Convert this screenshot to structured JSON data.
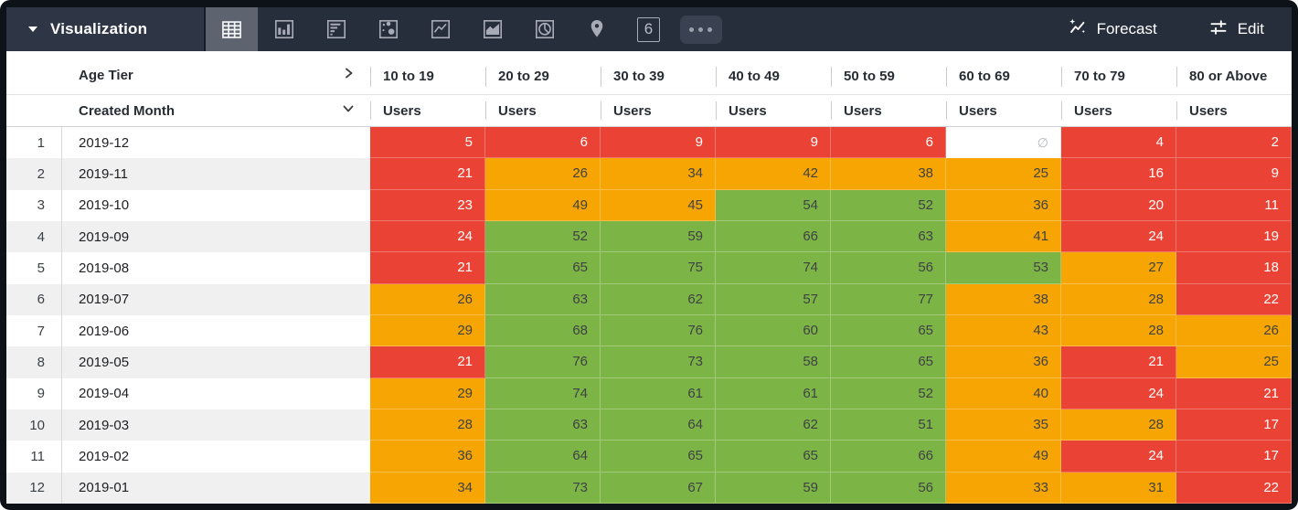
{
  "toolbar": {
    "viz_selector_label": "Visualization",
    "selected_tab": "table",
    "tab_names": [
      "table",
      "column-chart",
      "bar-chart",
      "scatter",
      "line-chart",
      "area-chart",
      "pie-chart",
      "map",
      "single-value",
      "more-options"
    ],
    "single_value_tab_label": "6",
    "forecast_label": "Forecast",
    "edit_label": "Edit"
  },
  "table": {
    "pivot_field_label": "Age Tier",
    "row_field_label": "Created Month",
    "measure_label": "Users",
    "pivot_columns": [
      "10 to 19",
      "20 to 29",
      "30 to 39",
      "40 to 49",
      "50 to 59",
      "60 to 69",
      "70 to 79",
      "80 or Above"
    ],
    "null_symbol": "∅",
    "rows": [
      {
        "num": "1",
        "month": "2019-12",
        "values": [
          5,
          6,
          9,
          9,
          6,
          null,
          4,
          2
        ]
      },
      {
        "num": "2",
        "month": "2019-11",
        "values": [
          21,
          26,
          34,
          42,
          38,
          25,
          16,
          9
        ]
      },
      {
        "num": "3",
        "month": "2019-10",
        "values": [
          23,
          49,
          45,
          54,
          52,
          36,
          20,
          11
        ]
      },
      {
        "num": "4",
        "month": "2019-09",
        "values": [
          24,
          52,
          59,
          66,
          63,
          41,
          24,
          19
        ]
      },
      {
        "num": "5",
        "month": "2019-08",
        "values": [
          21,
          65,
          75,
          74,
          56,
          53,
          27,
          18
        ]
      },
      {
        "num": "6",
        "month": "2019-07",
        "values": [
          26,
          63,
          62,
          57,
          77,
          38,
          28,
          22
        ]
      },
      {
        "num": "7",
        "month": "2019-06",
        "values": [
          29,
          68,
          76,
          60,
          65,
          43,
          28,
          26
        ]
      },
      {
        "num": "8",
        "month": "2019-05",
        "values": [
          21,
          76,
          73,
          58,
          65,
          36,
          21,
          25
        ]
      },
      {
        "num": "9",
        "month": "2019-04",
        "values": [
          29,
          74,
          61,
          61,
          52,
          40,
          24,
          21
        ]
      },
      {
        "num": "10",
        "month": "2019-03",
        "values": [
          28,
          63,
          64,
          62,
          51,
          35,
          28,
          17
        ]
      },
      {
        "num": "11",
        "month": "2019-02",
        "values": [
          36,
          64,
          65,
          65,
          66,
          49,
          24,
          17
        ]
      },
      {
        "num": "12",
        "month": "2019-01",
        "values": [
          34,
          73,
          67,
          59,
          56,
          33,
          31,
          22
        ]
      }
    ],
    "conditional_formatting": {
      "red_below": 25,
      "orange_below": 50,
      "red_bg": "#ea4335",
      "red_text": "#ffffff",
      "orange_bg": "#f7a502",
      "orange_text": "#3f4245",
      "green_bg": "#7db446",
      "green_text": "#3f4245",
      "null_text": "#b5b8bc"
    }
  },
  "colors": {
    "topbar_bg": "#262d3b",
    "viz_selector_bg": "#2e3544",
    "selected_tab_bg": "#5d6470",
    "frame": "#0d1118",
    "row_stripe": "#f0f0f1"
  }
}
